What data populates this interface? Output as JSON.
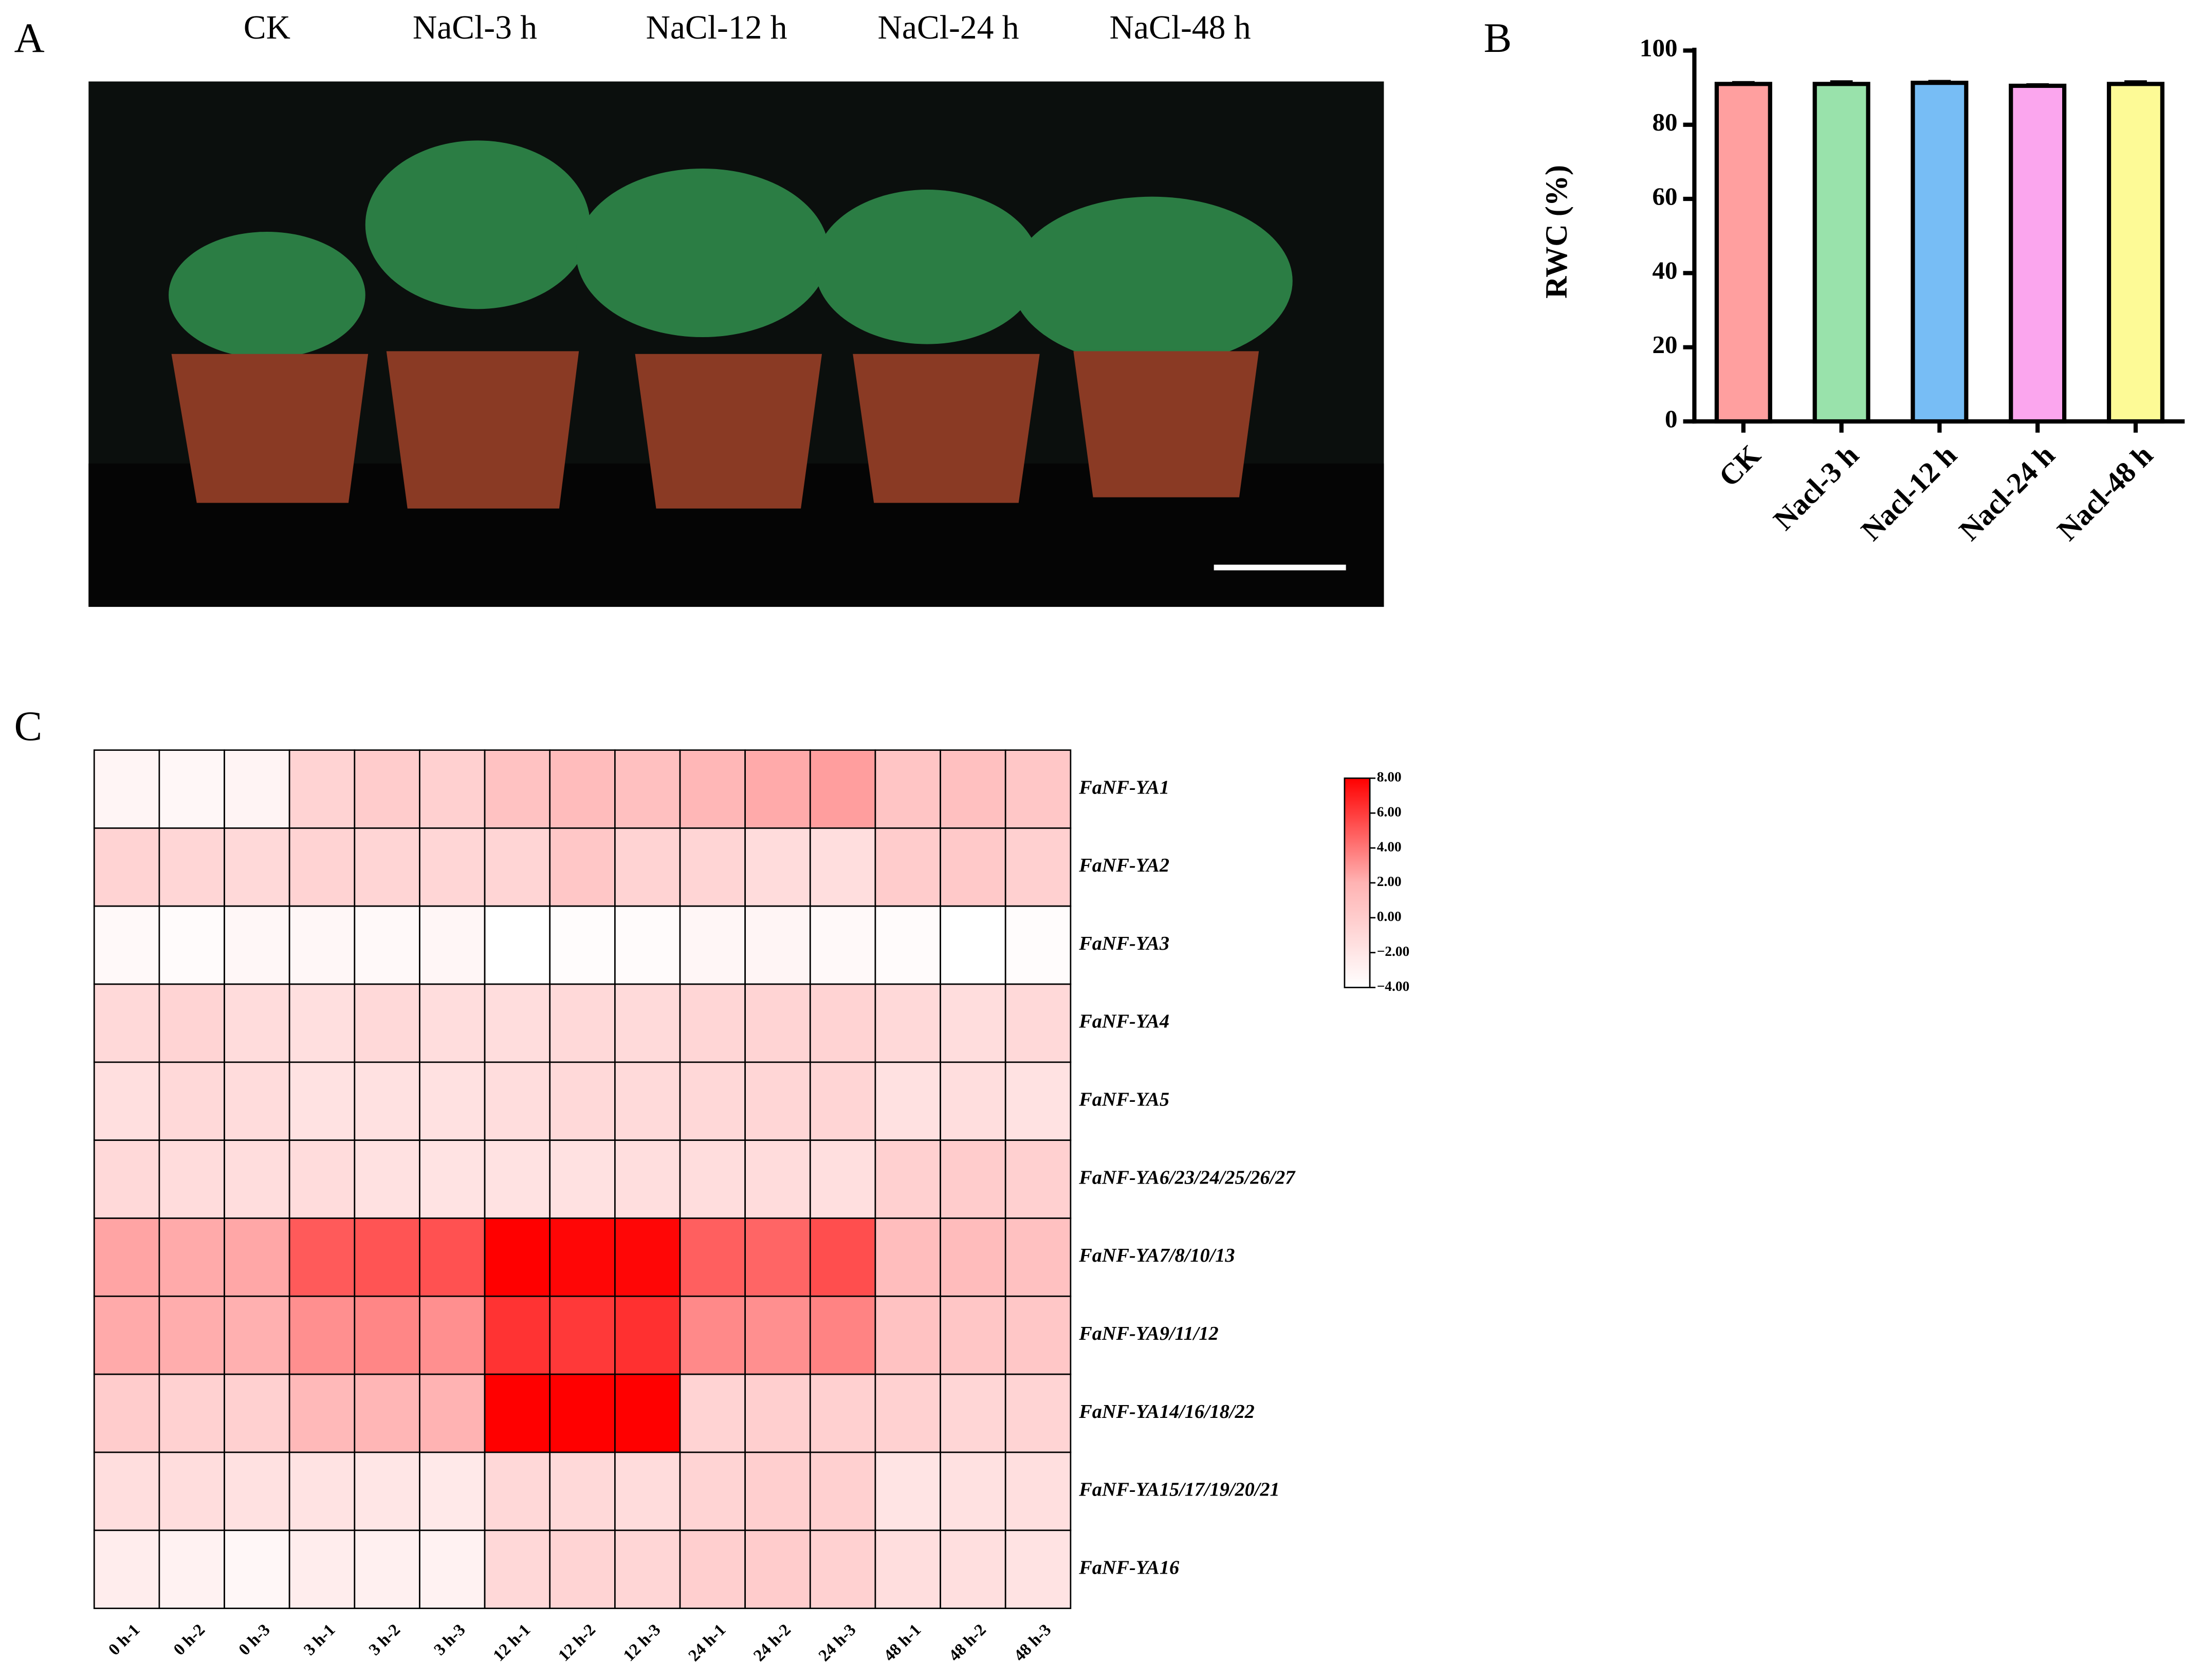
{
  "panels": [
    "A",
    "B",
    "C"
  ],
  "photo": {
    "labels": [
      "CK",
      "NaCl-3 h",
      "NaCl-12 h",
      "NaCl-24 h",
      "NaCl-48 h"
    ]
  },
  "chart_data": [
    {
      "type": "bar",
      "ylabel": "RWC (%)",
      "categories": [
        "CK",
        "Nacl-3 h",
        "Nacl-12 h",
        "Nacl-24 h",
        "Nacl-48 h"
      ],
      "values": [
        91,
        91,
        91.3,
        90.5,
        91
      ],
      "errors": [
        0.4,
        0.6,
        0.4,
        0.3,
        0.6
      ],
      "colors": [
        "#ff9f9f",
        "#99e2ab",
        "#77bdf5",
        "#fba6ee",
        "#fdfa96"
      ],
      "ylim": [
        0,
        100
      ],
      "yticks": [
        0,
        20,
        40,
        60,
        80,
        100
      ]
    },
    {
      "type": "heatmap",
      "x": [
        "0 h-1",
        "0 h-2",
        "0 h-3",
        "3 h-1",
        "3 h-2",
        "3 h-3",
        "12 h-1",
        "12 h-2",
        "12 h-3",
        "24 h-1",
        "24 h-2",
        "24 h-3",
        "48 h-1",
        "48 h-2",
        "48 h-3"
      ],
      "y": [
        "FaNF-YA1",
        "FaNF-YA2",
        "FaNF-YA3",
        "FaNF-YA4",
        "FaNF-YA5",
        "FaNF-YA6/23/24/25/26/27",
        "FaNF-YA7/8/10/13",
        "FaNF-YA9/11/12",
        "FaNF-YA14/16/18/22",
        "FaNF-YA15/17/19/20/21",
        "FaNF-YA16"
      ],
      "values": [
        [
          -3.2,
          -3.4,
          -3.1,
          -0.5,
          0,
          -0.3,
          0.8,
          1.3,
          1,
          1.7,
          2.3,
          2.7,
          0.6,
          1,
          0.4
        ],
        [
          -0.5,
          -0.8,
          -1,
          -0.5,
          -0.7,
          -0.8,
          -0.7,
          0.4,
          -0.5,
          -0.7,
          -1.2,
          -1.4,
          0,
          0.3,
          -0.3
        ],
        [
          -3.5,
          -3.7,
          -3.4,
          -3.4,
          -3.5,
          -3.3,
          -4,
          -3.8,
          -3.7,
          -3.3,
          -3.2,
          -3.5,
          -3.7,
          -4,
          -3.8
        ],
        [
          -1,
          -0.6,
          -1.2,
          -1.5,
          -1,
          -1.3,
          -1.3,
          -1,
          -1.1,
          -0.8,
          -0.6,
          -0.5,
          -1,
          -1.3,
          -1
        ],
        [
          -1.5,
          -1,
          -1.2,
          -1.7,
          -1.6,
          -1.6,
          -1.3,
          -1,
          -1.1,
          -0.9,
          -0.8,
          -0.7,
          -1.6,
          -1.4,
          -1.7
        ],
        [
          -1,
          -1.2,
          -1.3,
          -1.2,
          -1.6,
          -1.8,
          -1.7,
          -1.6,
          -1.4,
          -1.3,
          -1.2,
          -1.5,
          -0.3,
          0,
          -0.3
        ],
        [
          2.5,
          2.3,
          2.4,
          5,
          5.2,
          5.3,
          8,
          7.8,
          7.8,
          4.8,
          4.6,
          5.4,
          1.2,
          1.3,
          0.9
        ],
        [
          2.3,
          2.2,
          2.1,
          3.2,
          3.5,
          3.2,
          6.3,
          6.1,
          6.4,
          3.4,
          3.2,
          3.6,
          0.8,
          0.5,
          0.4
        ],
        [
          0,
          -0.4,
          -0.3,
          1.5,
          1.8,
          2,
          8,
          8,
          8,
          -0.5,
          -0.2,
          -0.3,
          -0.4,
          -0.8,
          -0.6
        ],
        [
          -1.4,
          -1.3,
          -1.6,
          -1.8,
          -2,
          -2.3,
          -0.9,
          -1,
          -1.2,
          -0.6,
          -0.2,
          -0.3,
          -1.9,
          -1.6,
          -1.5
        ],
        [
          -2.6,
          -3,
          -3.4,
          -2.6,
          -2.8,
          -3,
          -0.9,
          -0.6,
          -0.8,
          -0.2,
          0,
          -0.4,
          -1.4,
          -1.5,
          -1.8
        ]
      ],
      "clim": [
        -4,
        8
      ],
      "color_stops": [
        {
          "value": -4,
          "color": "#ffffff"
        },
        {
          "value": 2,
          "color": "#ffb3b3"
        },
        {
          "value": 8,
          "color": "#ff0000"
        }
      ],
      "colorbar_ticks": [
        {
          "value": 8,
          "label": "8.00"
        },
        {
          "value": 6,
          "label": "6.00"
        },
        {
          "value": 4,
          "label": "4.00"
        },
        {
          "value": 2,
          "label": "2.00"
        },
        {
          "value": 0,
          "label": "0.00"
        },
        {
          "value": -2,
          "label": "−2.00"
        },
        {
          "value": -4,
          "label": "−4.00"
        }
      ]
    }
  ]
}
